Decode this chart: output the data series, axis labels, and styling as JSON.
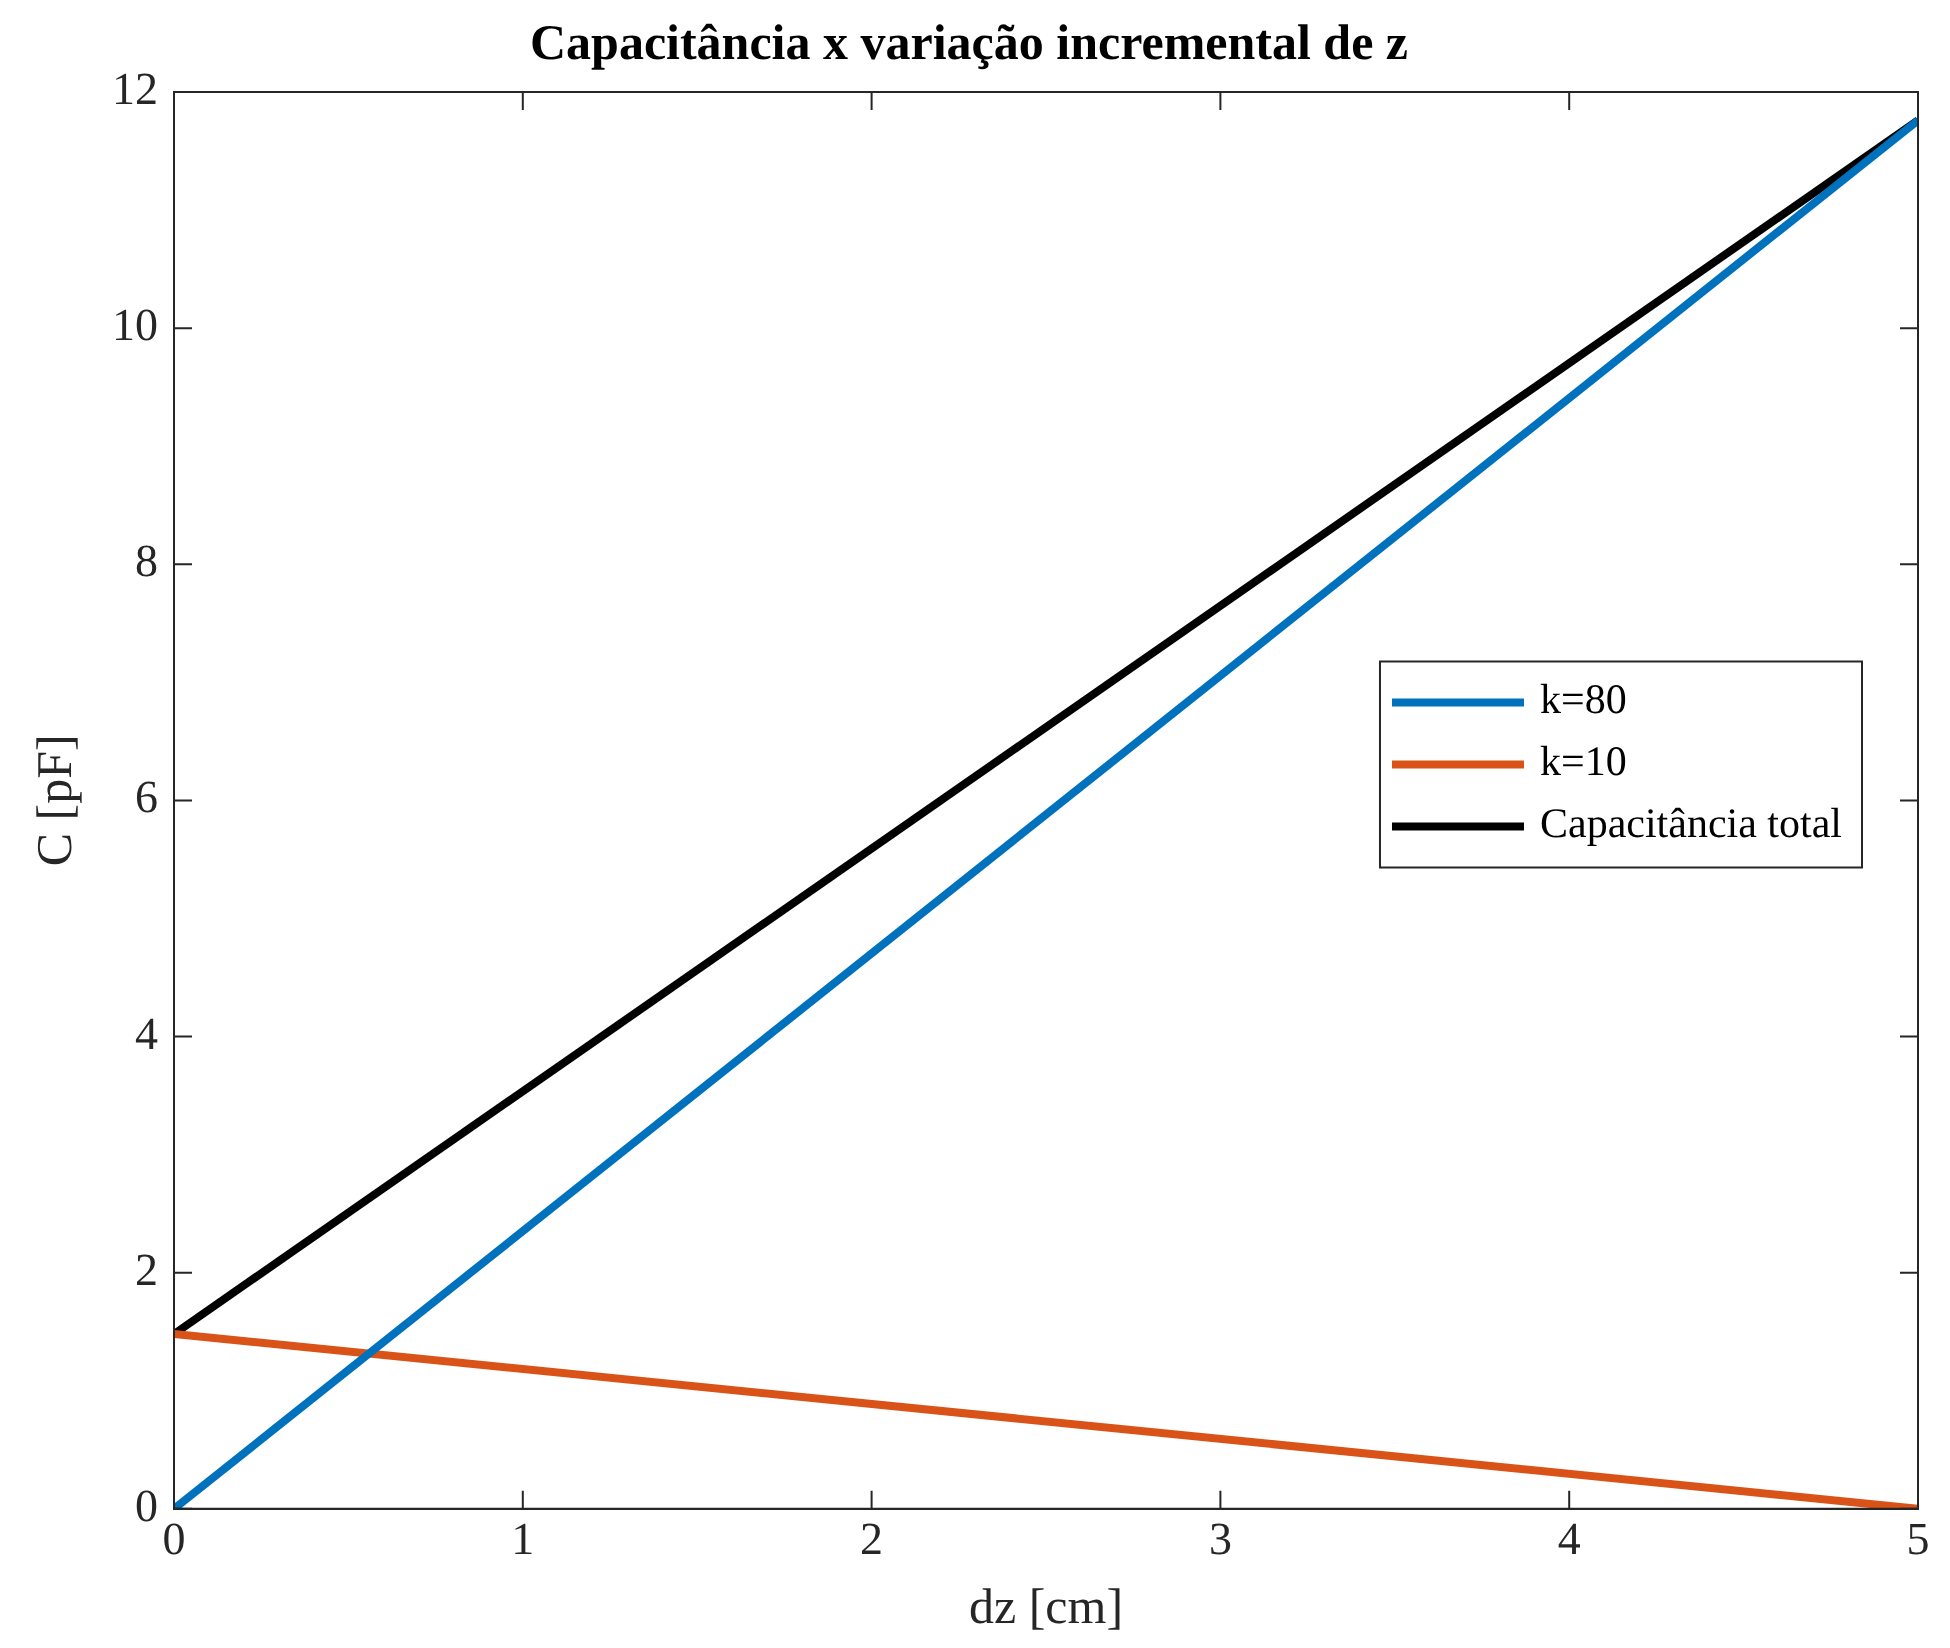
{
  "chart_data": {
    "type": "line",
    "title": "Capacitância x variação incremental de z",
    "xlabel": "dz [cm]",
    "ylabel": "C [pF]",
    "x": [
      0,
      5
    ],
    "series": [
      {
        "name": "k=80",
        "color": "#0072bd",
        "values": [
          0,
          11.76
        ]
      },
      {
        "name": "k=10",
        "color": "#d95319",
        "values": [
          1.48,
          0
        ]
      },
      {
        "name": "Capacitância total",
        "color": "#000000",
        "values": [
          1.48,
          11.76
        ]
      }
    ],
    "xlim": [
      0,
      5
    ],
    "xticks": [
      0,
      1,
      2,
      3,
      4,
      5
    ],
    "ylim": [
      0,
      12
    ],
    "yticks": [
      0,
      2,
      4,
      6,
      8,
      10,
      12
    ],
    "grid": false,
    "legend": "right",
    "marker": "none",
    "line_style": "solid"
  }
}
